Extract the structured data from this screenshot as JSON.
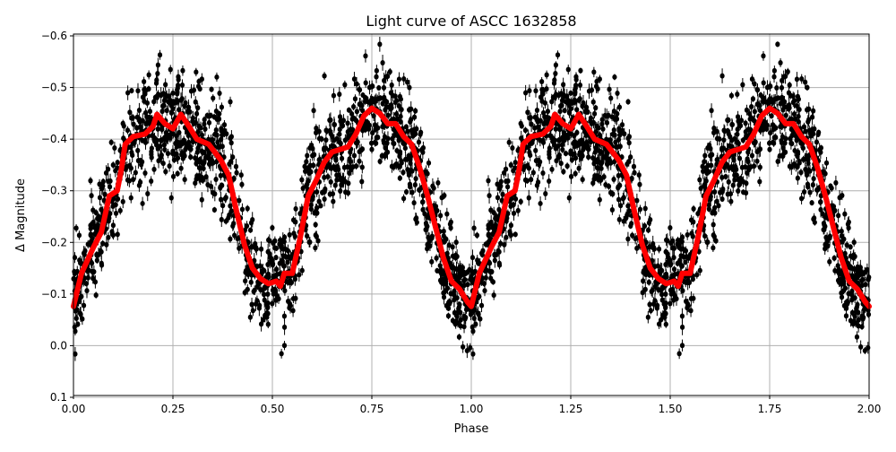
{
  "chart_data": {
    "type": "scatter",
    "title": "Light curve of ASCC 1632858",
    "xlabel": "Phase",
    "ylabel": "Δ Magnitude",
    "xlim": [
      0,
      2
    ],
    "ylim": [
      0.1,
      -0.6
    ],
    "y_inverted": true,
    "grid": true,
    "x_ticks": [
      "0.00",
      "0.25",
      "0.50",
      "0.75",
      "1.00",
      "1.25",
      "1.50",
      "1.75",
      "2.00"
    ],
    "y_ticks": [
      "−0.6",
      "−0.5",
      "−0.4",
      "−0.3",
      "−0.2",
      "−0.1",
      "0.0",
      "0.1"
    ],
    "series": [
      {
        "kind": "scatter-with-errorbars",
        "color": "#000000",
        "description_note": "dense cloud of measurements scattered about the binned curve, repeated over two phase cycles"
      },
      {
        "kind": "line",
        "color": "#ff0000",
        "phase": [
          0.0,
          0.02,
          0.05,
          0.07,
          0.09,
          0.11,
          0.12,
          0.13,
          0.15,
          0.18,
          0.2,
          0.21,
          0.23,
          0.25,
          0.27,
          0.29,
          0.31,
          0.34,
          0.37,
          0.39,
          0.41,
          0.43,
          0.45,
          0.47,
          0.49,
          0.51,
          0.52,
          0.53,
          0.55,
          0.57,
          0.59,
          0.61,
          0.63,
          0.65,
          0.67,
          0.69,
          0.71,
          0.73,
          0.75,
          0.77,
          0.79,
          0.81,
          0.83,
          0.85,
          0.87,
          0.89,
          0.91,
          0.93,
          0.95,
          0.97,
          0.99,
          1.0
        ],
        "magnitude": [
          -0.076,
          -0.14,
          -0.19,
          -0.22,
          -0.29,
          -0.3,
          -0.34,
          -0.39,
          -0.405,
          -0.41,
          -0.425,
          -0.448,
          -0.43,
          -0.42,
          -0.448,
          -0.425,
          -0.4,
          -0.39,
          -0.36,
          -0.33,
          -0.26,
          -0.195,
          -0.15,
          -0.13,
          -0.12,
          -0.125,
          -0.115,
          -0.14,
          -0.14,
          -0.21,
          -0.29,
          -0.32,
          -0.355,
          -0.375,
          -0.38,
          -0.385,
          -0.41,
          -0.445,
          -0.46,
          -0.45,
          -0.43,
          -0.43,
          -0.405,
          -0.39,
          -0.345,
          -0.29,
          -0.23,
          -0.17,
          -0.125,
          -0.11,
          -0.085,
          -0.076
        ],
        "repeats_every": 1
      }
    ]
  }
}
